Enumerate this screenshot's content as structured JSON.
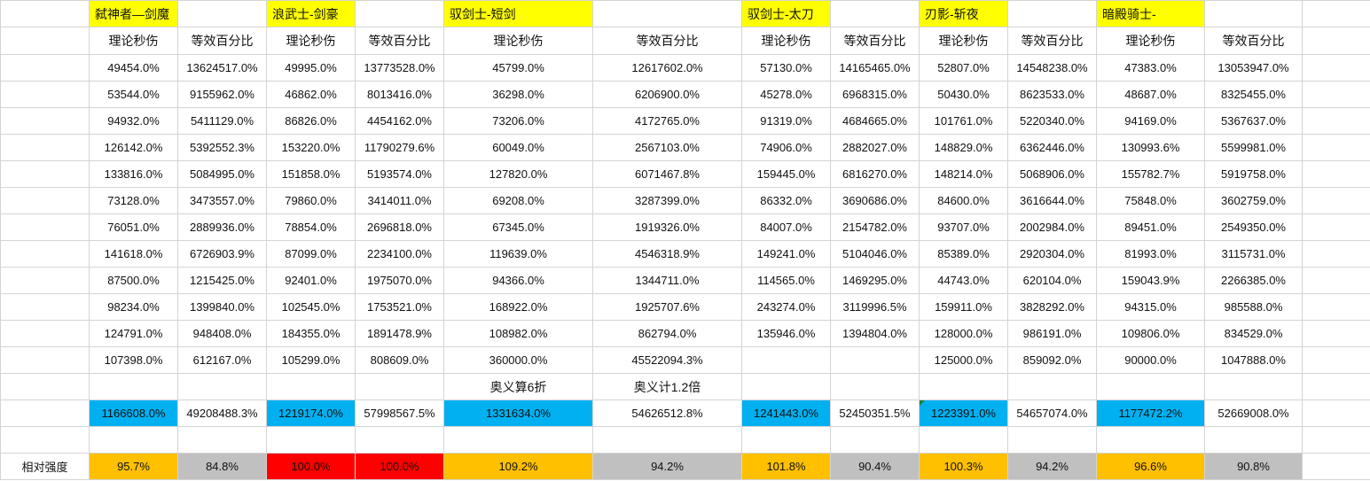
{
  "classes": [
    {
      "name": "弑神者—剑魔",
      "dps_header": "理论秒伤",
      "ratio_header": "等效百分比",
      "dps": [
        "49454.0%",
        "53544.0%",
        "94932.0%",
        "126142.0%",
        "133816.0%",
        "73128.0%",
        "76051.0%",
        "141618.0%",
        "87500.0%",
        "98234.0%",
        "124791.0%",
        "107398.0%"
      ],
      "ratio": [
        "13624517.0%",
        "9155962.0%",
        "5411129.0%",
        "5392552.3%",
        "5084995.0%",
        "3473557.0%",
        "2889936.0%",
        "6726903.9%",
        "1215425.0%",
        "1399840.0%",
        "948408.0%",
        "612167.0%"
      ],
      "note_dps": "",
      "note_ratio": "",
      "total_dps": "1166608.0%",
      "total_ratio": "49208488.3%",
      "rel_dps": "95.7%",
      "rel_ratio": "84.8%"
    },
    {
      "name": "浪武士-剑豪",
      "dps_header": "理论秒伤",
      "ratio_header": "等效百分比",
      "dps": [
        "49995.0%",
        "46862.0%",
        "86826.0%",
        "153220.0%",
        "151858.0%",
        "79860.0%",
        "78854.0%",
        "87099.0%",
        "92401.0%",
        "102545.0%",
        "184355.0%",
        "105299.0%"
      ],
      "ratio": [
        "13773528.0%",
        "8013416.0%",
        "4454162.0%",
        "11790279.6%",
        "5193574.0%",
        "3414011.0%",
        "2696818.0%",
        "2234100.0%",
        "1975070.0%",
        "1753521.0%",
        "1891478.9%",
        "808609.0%"
      ],
      "note_dps": "",
      "note_ratio": "",
      "total_dps": "1219174.0%",
      "total_ratio": "57998567.5%",
      "rel_dps": "100.0%",
      "rel_ratio": "100.0%"
    },
    {
      "name": "驭剑士-短剑",
      "dps_header": "理论秒伤",
      "ratio_header": "等效百分比",
      "dps": [
        "45799.0%",
        "36298.0%",
        "73206.0%",
        "60049.0%",
        "127820.0%",
        "69208.0%",
        "67345.0%",
        "119639.0%",
        "94366.0%",
        "168922.0%",
        "108982.0%",
        "360000.0%"
      ],
      "ratio": [
        "12617602.0%",
        "6206900.0%",
        "4172765.0%",
        "2567103.0%",
        "6071467.8%",
        "3287399.0%",
        "1919326.0%",
        "4546318.9%",
        "1344711.0%",
        "1925707.6%",
        "862794.0%",
        "45522094.3%"
      ],
      "note_dps": "奥义算6折",
      "note_ratio": "奥义计1.2倍",
      "total_dps": "1331634.0%",
      "total_ratio": "54626512.8%",
      "rel_dps": "109.2%",
      "rel_ratio": "94.2%"
    },
    {
      "name": "驭剑士-太刀",
      "dps_header": "理论秒伤",
      "ratio_header": "等效百分比",
      "dps": [
        "57130.0%",
        "45278.0%",
        "91319.0%",
        "74906.0%",
        "159445.0%",
        "86332.0%",
        "84007.0%",
        "149241.0%",
        "114565.0%",
        "243274.0%",
        "135946.0%",
        ""
      ],
      "ratio": [
        "14165465.0%",
        "6968315.0%",
        "4684665.0%",
        "2882027.0%",
        "6816270.0%",
        "3690686.0%",
        "2154782.0%",
        "5104046.0%",
        "1469295.0%",
        "3119996.5%",
        "1394804.0%",
        ""
      ],
      "note_dps": "",
      "note_ratio": "",
      "total_dps": "1241443.0%",
      "total_ratio": "52450351.5%",
      "rel_dps": "101.8%",
      "rel_ratio": "90.4%"
    },
    {
      "name": "刃影-斩夜",
      "dps_header": "理论秒伤",
      "ratio_header": "等效百分比",
      "dps": [
        "52807.0%",
        "50430.0%",
        "101761.0%",
        "148829.0%",
        "148214.0%",
        "84600.0%",
        "93707.0%",
        "85389.0%",
        "44743.0%",
        "159911.0%",
        "128000.0%",
        "125000.0%"
      ],
      "ratio": [
        "14548238.0%",
        "8623533.0%",
        "5220340.0%",
        "6362446.0%",
        "5068906.0%",
        "3616644.0%",
        "2002984.0%",
        "2920304.0%",
        "620104.0%",
        "3828292.0%",
        "986191.0%",
        "859092.0%"
      ],
      "note_dps": "",
      "note_ratio": "",
      "total_dps": "1223391.0%",
      "total_ratio": "54657074.0%",
      "rel_dps": "100.3%",
      "rel_ratio": "94.2%"
    },
    {
      "name": "暗殿骑士-",
      "dps_header": "理论秒伤",
      "ratio_header": "等效百分比",
      "dps": [
        "47383.0%",
        "48687.0%",
        "94169.0%",
        "130993.6%",
        "155782.7%",
        "75848.0%",
        "89451.0%",
        "81993.0%",
        "159043.9%",
        "94315.0%",
        "109806.0%",
        "90000.0%"
      ],
      "ratio": [
        "13053947.0%",
        "8325455.0%",
        "5367637.0%",
        "5599981.0%",
        "5919758.0%",
        "3602759.0%",
        "2549350.0%",
        "3115731.0%",
        "2266385.0%",
        "985588.0%",
        "834529.0%",
        "1047888.0%"
      ],
      "note_dps": "",
      "note_ratio": "",
      "total_dps": "1177472.2%",
      "total_ratio": "52669008.0%",
      "rel_dps": "96.6%",
      "rel_ratio": "90.8%"
    }
  ],
  "relative_label": "相对强度",
  "colors": {
    "title_fill": "#ffff00",
    "total_fill": "#00b0f0",
    "rel_dps_fill": [
      "#ffc000",
      "#ff0000",
      "#ffc000",
      "#ffc000",
      "#ffc000",
      "#ffc000"
    ],
    "rel_ratio_fill": [
      "#c0c0c0",
      "#ff0000",
      "#c0c0c0",
      "#c0c0c0",
      "#c0c0c0",
      "#c0c0c0"
    ]
  }
}
